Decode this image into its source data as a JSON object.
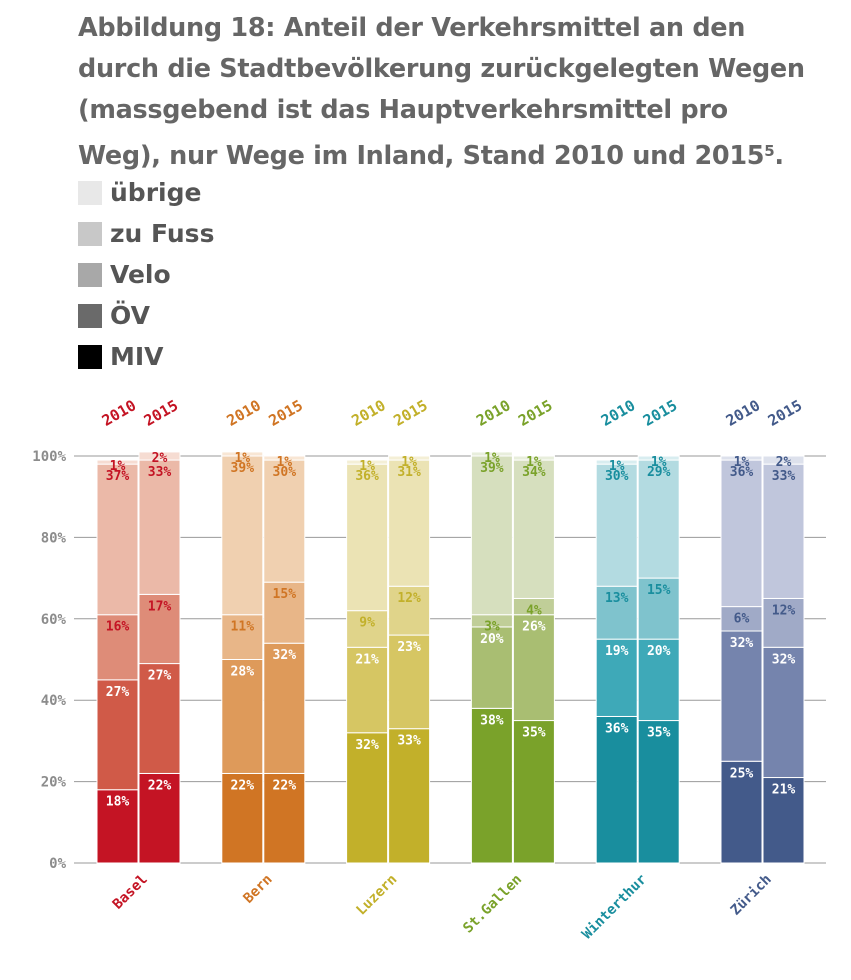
{
  "title": "Abbildung 18: Anteil der Verkehrsmittel an den durch die Stadtbevölkerung zurückgelegten Wegen (massgebend ist das Hauptverkehrsmittel pro Weg), nur Wege im Inland, Stand 2010 und 2015",
  "title_footnote": "5",
  "title_end": ".",
  "legend": [
    {
      "label": "übrige",
      "color": "#e8e8e8"
    },
    {
      "label": "zu Fuss",
      "color": "#c8c8c8"
    },
    {
      "label": "Velo",
      "color": "#a8a8a8"
    },
    {
      "label": "ÖV",
      "color": "#6a6a6a"
    },
    {
      "label": "MIV",
      "color": "#000000"
    }
  ],
  "chart_data": {
    "type": "bar",
    "stacked": true,
    "ylim": [
      0,
      100
    ],
    "yticks": [
      "0%",
      "20%",
      "40%",
      "60%",
      "80%",
      "100%"
    ],
    "years": [
      "2010",
      "2015"
    ],
    "segments": [
      "MIV",
      "ÖV",
      "Velo",
      "zu Fuss",
      "übrige"
    ],
    "cities": [
      {
        "name": "Basel",
        "color": "#c41424",
        "shades": [
          "#c41424",
          "#d05a48",
          "#de8c78",
          "#ebb9a8",
          "#f6dcd2"
        ],
        "values": [
          [
            18,
            27,
            16,
            37,
            1
          ],
          [
            22,
            27,
            17,
            33,
            2
          ]
        ]
      },
      {
        "name": "Bern",
        "color": "#d07524",
        "shades": [
          "#d07524",
          "#de9a5a",
          "#e8b688",
          "#f0d0b0",
          "#f8e6d4"
        ],
        "values": [
          [
            22,
            28,
            11,
            39,
            1
          ],
          [
            22,
            32,
            15,
            30,
            1
          ]
        ]
      },
      {
        "name": "Luzern",
        "color": "#c2b02a",
        "shades": [
          "#c2b02a",
          "#d6c663",
          "#e0d48a",
          "#ebe3b4",
          "#f4efd6"
        ],
        "values": [
          [
            32,
            21,
            9,
            36,
            1
          ],
          [
            33,
            23,
            12,
            31,
            1
          ]
        ]
      },
      {
        "name": "St.Gallen",
        "color": "#7aa22a",
        "shades": [
          "#7aa22a",
          "#a9be72",
          "#c0ce98",
          "#d6dfbe",
          "#e8eedc"
        ],
        "values": [
          [
            38,
            20,
            3,
            39,
            1
          ],
          [
            35,
            26,
            4,
            34,
            1
          ]
        ]
      },
      {
        "name": "Winterthur",
        "color": "#198e9e",
        "shades": [
          "#198e9e",
          "#3ea9b8",
          "#7fc3cd",
          "#b3dbe1",
          "#d8edf0"
        ],
        "values": [
          [
            36,
            19,
            13,
            30,
            1
          ],
          [
            35,
            20,
            15,
            29,
            1
          ]
        ]
      },
      {
        "name": "Zürich",
        "color": "#435a8a",
        "shades": [
          "#435a8a",
          "#7584ad",
          "#a0aac7",
          "#c0c6dc",
          "#dde1ec"
        ],
        "values": [
          [
            25,
            32,
            6,
            36,
            1
          ],
          [
            21,
            32,
            12,
            33,
            2
          ]
        ]
      }
    ]
  }
}
